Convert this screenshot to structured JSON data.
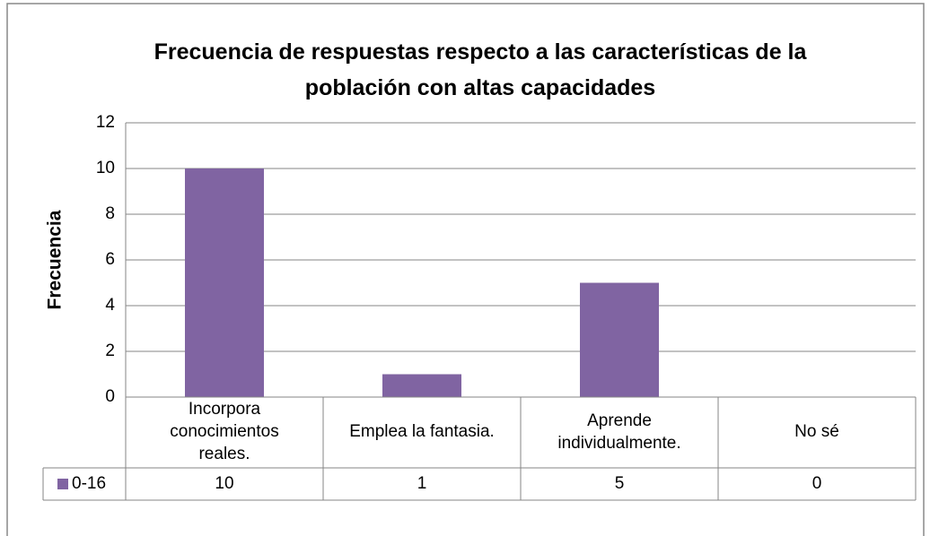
{
  "chart_data": {
    "type": "bar",
    "title": "Frecuencia de respuestas respecto a las características de la población con altas capacidades",
    "y_label": "Frecuencia",
    "categories": [
      "Incorpora conocimientos reales.",
      "Emplea la fantasia.",
      "Aprende individualmente.",
      "No sé"
    ],
    "series": [
      {
        "name": "0-16",
        "color": "#8064a2",
        "values": [
          10,
          1,
          5,
          0
        ]
      }
    ],
    "ylim": [
      0,
      12
    ],
    "yticks": [
      0,
      2,
      4,
      6,
      8,
      10,
      12
    ],
    "grid": true,
    "data_table": true
  }
}
